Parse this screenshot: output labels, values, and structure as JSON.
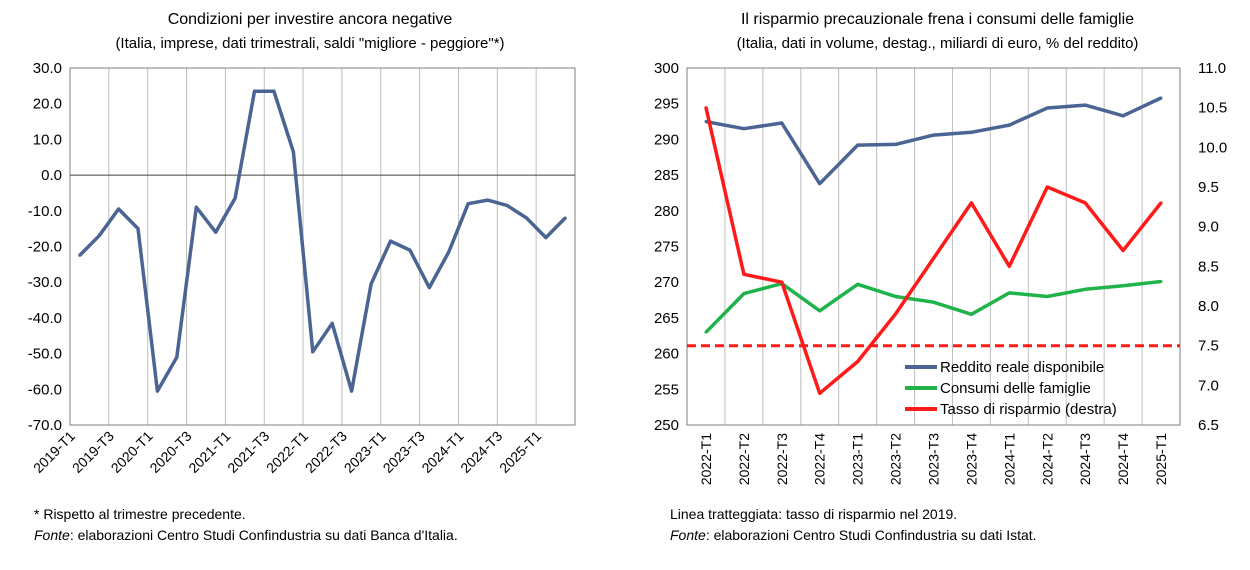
{
  "colors": {
    "blue": "#4a6593",
    "green": "#1fb34a",
    "red": "#ff1a1a",
    "axis": "#7f7f7f",
    "grid": "#bfbfbf"
  },
  "left": {
    "title": "Condizioni per investire ancora negative",
    "subtitle": "(Italia, imprese, dati trimestrali, saldi \"migliore - peggiore\"*)",
    "note1": "* Rispetto al trimestre precedente.",
    "source_label": "Fonte",
    "source_text": ": elaborazioni Centro Studi Confindustria su dati Banca d'Italia."
  },
  "right": {
    "title": "Il risparmio precauzionale frena i consumi delle famiglie",
    "subtitle": "(Italia, dati in volume, destag., miliardi di euro, % del reddito)",
    "note1": "Linea tratteggiata: tasso di risparmio nel 2019.",
    "source_label": "Fonte",
    "source_text": ": elaborazioni Centro Studi Confindustria su dati Istat."
  },
  "chart_data": [
    {
      "type": "line",
      "title": "Condizioni per investire ancora negative",
      "subtitle": "(Italia, imprese, dati trimestrali, saldi \"migliore - peggiore\"*)",
      "ylim": [
        -70,
        30
      ],
      "yticks": [
        "30.0",
        "20.0",
        "10.0",
        "0.0",
        "-10.0",
        "-20.0",
        "-30.0",
        "-40.0",
        "-50.0",
        "-60.0",
        "-70.0"
      ],
      "x_tick_labels": [
        "2019-T1",
        "2019-T3",
        "2020-T1",
        "2020-T3",
        "2021-T1",
        "2021-T3",
        "2022-T1",
        "2022-T3",
        "2023-T1",
        "2023-T3",
        "2024-T1",
        "2024-T3",
        "2025-T1"
      ],
      "x": [
        "2019-T1",
        "2019-T2",
        "2019-T3",
        "2019-T4",
        "2020-T1",
        "2020-T2",
        "2020-T3",
        "2020-T4",
        "2021-T1",
        "2021-T2",
        "2021-T3",
        "2021-T4",
        "2022-T1",
        "2022-T2",
        "2022-T3",
        "2022-T4",
        "2023-T1",
        "2023-T2",
        "2023-T3",
        "2023-T4",
        "2024-T1",
        "2024-T2",
        "2024-T3",
        "2024-T4",
        "2025-T1",
        "2025-T2"
      ],
      "series": [
        {
          "values": [
            -22.5,
            -17,
            -9.5,
            -15,
            -60.5,
            -51,
            -9,
            -16,
            -6.5,
            23.5,
            23.5,
            6.5,
            -49.5,
            -41.5,
            -60.5,
            -30.5,
            -18.5,
            -21,
            -31.5,
            -21.5,
            -8,
            -7,
            -8.5,
            -12,
            -17.5,
            -12
          ]
        }
      ],
      "grid": "x-only",
      "legend": "none"
    },
    {
      "type": "line",
      "title": "Il risparmio precauzionale frena i consumi delle famiglie",
      "subtitle": "(Italia, dati in volume, destag., miliardi di euro, % del reddito)",
      "x": [
        "2022-T1",
        "2022-T2",
        "2022-T3",
        "2022-T4",
        "2023-T1",
        "2023-T2",
        "2023-T3",
        "2023-T4",
        "2024-T1",
        "2024-T2",
        "2024-T3",
        "2024-T4",
        "2025-T1"
      ],
      "ylim": [
        250,
        300
      ],
      "yticks": [
        "300",
        "295",
        "290",
        "285",
        "280",
        "275",
        "270",
        "265",
        "260",
        "255",
        "250"
      ],
      "y2lim": [
        6.5,
        11.0
      ],
      "y2ticks": [
        "11.0",
        "10.5",
        "10.0",
        "9.5",
        "9.0",
        "8.5",
        "8.0",
        "7.5",
        "7.0",
        "6.5"
      ],
      "series": [
        {
          "name": "Reddito reale disponibile",
          "axis": "left",
          "values": [
            292.5,
            291.5,
            292.3,
            283.8,
            289.2,
            289.3,
            290.6,
            291,
            292,
            294.4,
            294.8,
            293.3,
            295.8
          ]
        },
        {
          "name": "Consumi delle famiglie",
          "axis": "left",
          "values": [
            263,
            268.4,
            269.8,
            266,
            269.7,
            268,
            267.2,
            265.5,
            268.5,
            268,
            269,
            269.5,
            270.1
          ]
        },
        {
          "name": "Tasso di risparmio (destra)",
          "axis": "right",
          "values": [
            10.5,
            8.4,
            8.3,
            6.9,
            7.3,
            7.9,
            8.6,
            9.3,
            8.5,
            9.5,
            9.3,
            8.7,
            9.3
          ]
        },
        {
          "axis": "right",
          "style": "dashed",
          "values": [
            7.5,
            7.5,
            7.5,
            7.5,
            7.5,
            7.5,
            7.5,
            7.5,
            7.5,
            7.5,
            7.5,
            7.5,
            7.5
          ]
        }
      ],
      "grid": "x-only",
      "legend": "bottom-right inside plot"
    }
  ]
}
